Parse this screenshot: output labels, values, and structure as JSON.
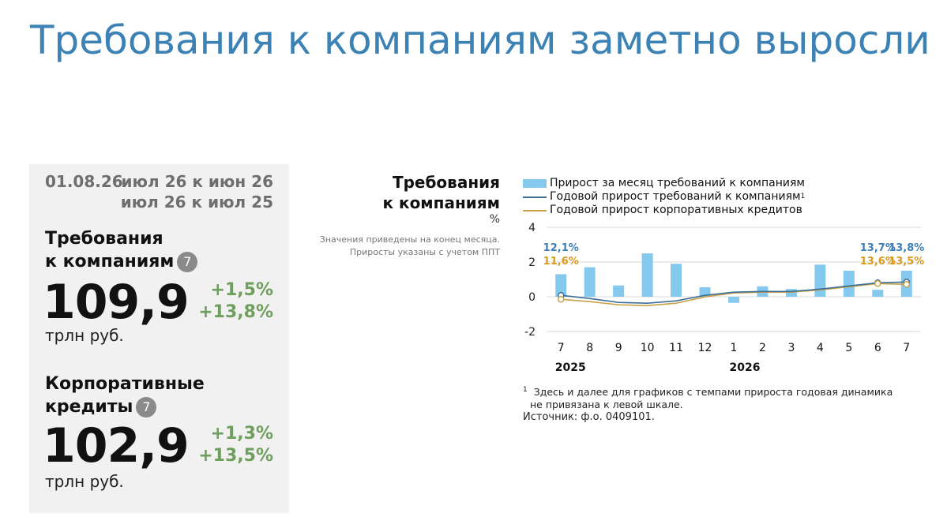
{
  "title": "Требования к компаниям заметно выросли",
  "panel": {
    "date": "01.08.26",
    "compare1": "июл 26 к июн 26",
    "compare2": "июл 26 к июл 25",
    "block1": {
      "label_line1": "Требования",
      "label_line2": "к компаниям",
      "badge": "7",
      "value": "109,9",
      "unit": "трлн руб.",
      "change_mom": "+1,5%",
      "change_yoy": "+13,8%"
    },
    "block2": {
      "label_line1": "Корпоративные",
      "label_line2": "кредиты",
      "badge": "7",
      "value": "102,9",
      "unit": "трлн руб.",
      "change_mom": "+1,3%",
      "change_yoy": "+13,5%"
    }
  },
  "chart_header": {
    "title_line1": "Требования",
    "title_line2": "к компаниям",
    "unit": "%",
    "note_line1": "Значения приведены на конец месяца.",
    "note_line2": "Приросты указаны с учетом ППТ"
  },
  "footnote": {
    "marker": "1",
    "line1": "Здесь и далее для графиков с темпами прироста годовая динамика",
    "line2": "не привязана к левой шкале."
  },
  "source": "Источник: ф.о. 0409101.",
  "colors": {
    "bar": "#86c9ee",
    "line_claims": "#3a6e96",
    "line_loans": "#c9a24a",
    "label_claims": "#3d7fb6",
    "label_loans": "#d99a1e",
    "positive": "#6f9f5e",
    "title": "#3d82b5"
  },
  "chart_data": {
    "type": "bar",
    "categories": [
      "7",
      "8",
      "9",
      "10",
      "11",
      "12",
      "1",
      "2",
      "3",
      "4",
      "5",
      "6",
      "7"
    ],
    "year_labels": [
      {
        "index": 0,
        "label": "2025"
      },
      {
        "index": 6,
        "label": "2026"
      }
    ],
    "ylim": [
      -2,
      4
    ],
    "yticks": [
      "4",
      "2",
      "0",
      "-2"
    ],
    "ytick_values": [
      4,
      2,
      0,
      -2
    ],
    "grid": "horizontal",
    "series": [
      {
        "name": "Прирост за месяц требований к компаниям",
        "type": "bar",
        "values": [
          1.3,
          1.7,
          0.65,
          2.5,
          1.9,
          0.55,
          -0.35,
          0.6,
          0.45,
          1.85,
          1.5,
          0.4,
          1.5
        ]
      },
      {
        "name": "Годовой прирост требований к компаниям",
        "legend_marker": "1",
        "type": "line",
        "values": [
          12.1,
          11.7,
          11.2,
          11.1,
          11.4,
          12.1,
          12.5,
          12.6,
          12.6,
          12.9,
          13.3,
          13.7,
          13.8
        ]
      },
      {
        "name": "Годовой прирост корпоративных кредитов",
        "type": "line",
        "values": [
          11.6,
          11.3,
          10.9,
          10.8,
          11.1,
          11.9,
          12.4,
          12.5,
          12.5,
          12.8,
          13.2,
          13.6,
          13.5
        ]
      }
    ],
    "annotations": [
      {
        "series": 1,
        "index": 0,
        "text": "12,1%"
      },
      {
        "series": 2,
        "index": 0,
        "text": "11,6%"
      },
      {
        "series": 1,
        "index": 11,
        "text": "13,7%"
      },
      {
        "series": 2,
        "index": 11,
        "text": "13,6%"
      },
      {
        "series": 1,
        "index": 12,
        "text": "13,8%"
      },
      {
        "series": 2,
        "index": 12,
        "text": "13,5%"
      }
    ]
  }
}
